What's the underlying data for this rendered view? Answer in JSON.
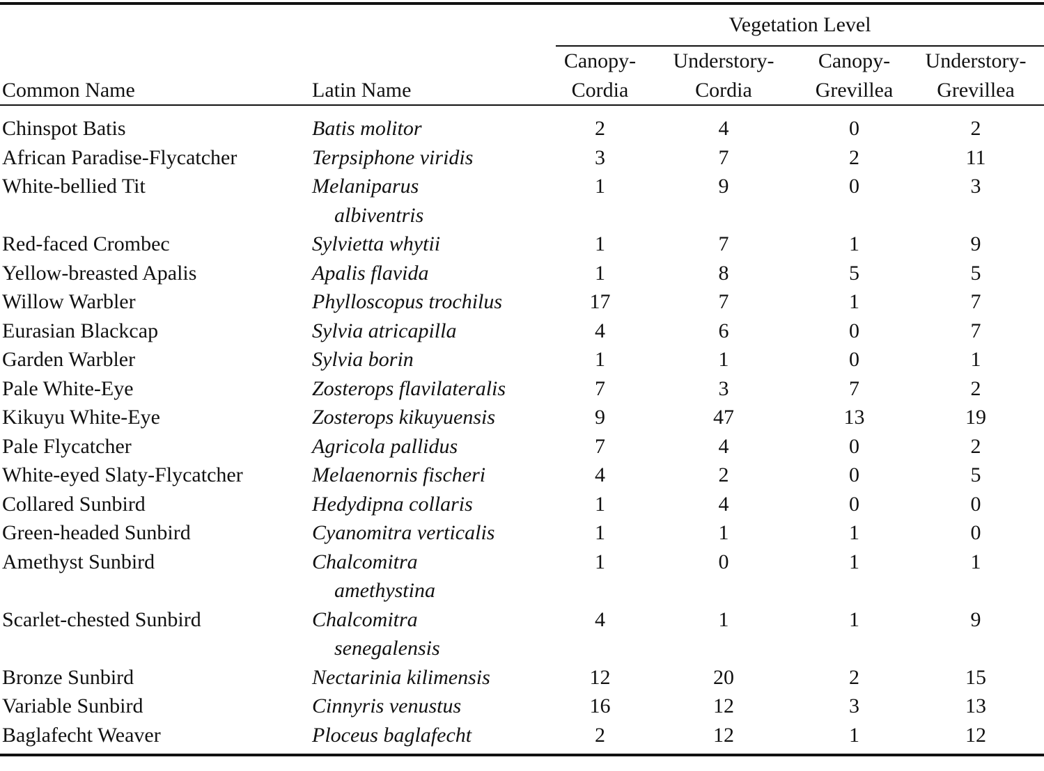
{
  "table": {
    "group_header": "Vegetation Level",
    "columns": [
      [
        "Common Name"
      ],
      [
        "Latin Name"
      ],
      [
        "Canopy-",
        "Cordia"
      ],
      [
        "Understory-",
        "Cordia"
      ],
      [
        "Canopy-",
        "Grevillea"
      ],
      [
        "Understory-",
        "Grevillea"
      ]
    ],
    "rows": [
      [
        "Chinspot Batis",
        [
          "Batis molitor"
        ],
        2,
        4,
        0,
        2
      ],
      [
        "African Paradise-Flycatcher",
        [
          "Terpsiphone viridis"
        ],
        3,
        7,
        2,
        11
      ],
      [
        "White-bellied Tit",
        [
          "Melaniparus",
          "albiventris"
        ],
        1,
        9,
        0,
        3
      ],
      [
        "Red-faced Crombec",
        [
          "Sylvietta whytii"
        ],
        1,
        7,
        1,
        9
      ],
      [
        "Yellow-breasted Apalis",
        [
          "Apalis flavida"
        ],
        1,
        8,
        5,
        5
      ],
      [
        "Willow Warbler",
        [
          "Phylloscopus trochilus"
        ],
        17,
        7,
        1,
        7
      ],
      [
        "Eurasian Blackcap",
        [
          "Sylvia atricapilla"
        ],
        4,
        6,
        0,
        7
      ],
      [
        "Garden Warbler",
        [
          "Sylvia borin"
        ],
        1,
        1,
        0,
        1
      ],
      [
        "Pale White-Eye",
        [
          "Zosterops flavilateralis"
        ],
        7,
        3,
        7,
        2
      ],
      [
        "Kikuyu White-Eye",
        [
          "Zosterops kikuyuensis"
        ],
        9,
        47,
        13,
        19
      ],
      [
        "Pale Flycatcher",
        [
          "Agricola pallidus"
        ],
        7,
        4,
        0,
        2
      ],
      [
        "White-eyed Slaty-Flycatcher",
        [
          "Melaenornis fischeri"
        ],
        4,
        2,
        0,
        5
      ],
      [
        "Collared Sunbird",
        [
          "Hedydipna collaris"
        ],
        1,
        4,
        0,
        0
      ],
      [
        "Green-headed Sunbird",
        [
          "Cyanomitra verticalis"
        ],
        1,
        1,
        1,
        0
      ],
      [
        "Amethyst Sunbird",
        [
          "Chalcomitra",
          "amethystina"
        ],
        1,
        0,
        1,
        1
      ],
      [
        "Scarlet-chested Sunbird",
        [
          "Chalcomitra",
          "senegalensis"
        ],
        4,
        1,
        1,
        9
      ],
      [
        "Bronze Sunbird",
        [
          "Nectarinia kilimensis"
        ],
        12,
        20,
        2,
        15
      ],
      [
        "Variable Sunbird",
        [
          "Cinnyris venustus"
        ],
        16,
        12,
        3,
        13
      ],
      [
        "Baglafecht Weaver",
        [
          "Ploceus baglafecht"
        ],
        2,
        12,
        1,
        12
      ]
    ]
  }
}
